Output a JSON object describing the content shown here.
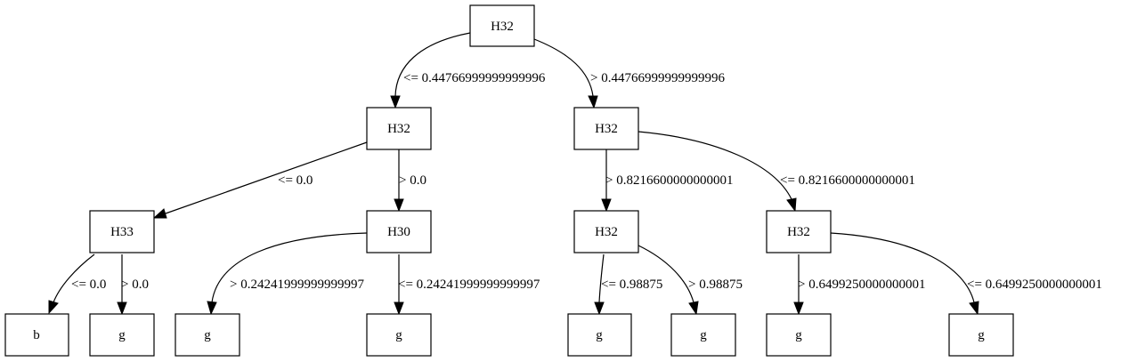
{
  "nodes": {
    "n0": "H32",
    "n1": "H32",
    "n2": "H32",
    "n3": "H33",
    "n4": "H30",
    "n5": "H32",
    "n6": "H32",
    "l1": "b",
    "l2": "g",
    "l3": "g",
    "l4": "g",
    "l5": "g",
    "l6": "g",
    "l7": "g",
    "l8": "g"
  },
  "edges": {
    "e1": "<= 0.44766999999999996",
    "e2": "> 0.44766999999999996",
    "e3": "<= 0.0",
    "e4": "> 0.0",
    "e5": "> 0.8216600000000001",
    "e6": "<= 0.8216600000000001",
    "e7": "<= 0.0",
    "e8": "> 0.0",
    "e9": "> 0.24241999999999997",
    "e10": "<= 0.24241999999999997",
    "e11": "<= 0.98875",
    "e12": "> 0.98875",
    "e13": "> 0.6499250000000001",
    "e14": "<= 0.6499250000000001"
  }
}
